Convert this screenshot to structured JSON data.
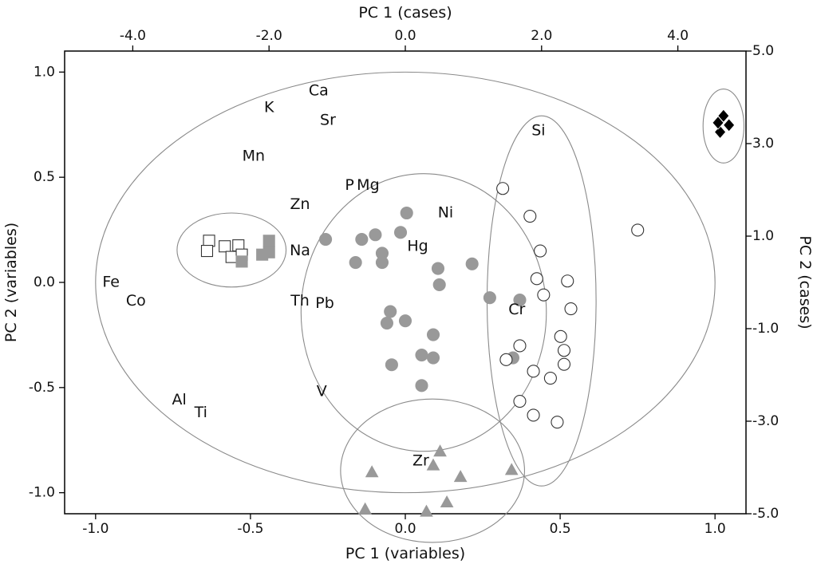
{
  "chart_data": {
    "type": "scatter",
    "axes": {
      "bottom": {
        "label": "PC 1 (variables)",
        "range": [
          -1.1,
          1.1
        ],
        "ticks": [
          -1.0,
          -0.5,
          0.0,
          0.5,
          1.0
        ],
        "tick_labels": [
          "-1.0",
          "-0.5",
          "0.0",
          "0.5",
          "1.0"
        ]
      },
      "left": {
        "label": "PC 2 (variables)",
        "range": [
          -1.1,
          1.1
        ],
        "ticks": [
          -1.0,
          -0.5,
          0.0,
          0.5,
          1.0
        ],
        "tick_labels": [
          "-1.0",
          "-0.5",
          "0.0",
          "0.5",
          "1.0"
        ]
      },
      "top": {
        "label": "PC 1 (cases)",
        "range": [
          -5.0,
          5.0
        ],
        "ticks": [
          -4.0,
          -2.0,
          0.0,
          2.0,
          4.0
        ],
        "tick_labels": [
          "-4.0",
          "-2.0",
          "0.0",
          "2.0",
          "4.0"
        ]
      },
      "right": {
        "label": "PC 2 (cases)",
        "range": [
          -5.0,
          5.0
        ],
        "ticks": [
          -5.0,
          -3.0,
          -1.0,
          1.0,
          3.0,
          5.0
        ],
        "tick_labels": [
          "-5.0",
          "-3.0",
          "-1.0",
          "1.0",
          "3.0",
          "5.0"
        ]
      }
    },
    "grid": false,
    "variables": [
      {
        "label": "Ca",
        "x": -0.28,
        "y": 0.91
      },
      {
        "label": "K",
        "x": -0.44,
        "y": 0.83
      },
      {
        "label": "Sr",
        "x": -0.25,
        "y": 0.77
      },
      {
        "label": "Mn",
        "x": -0.49,
        "y": 0.6
      },
      {
        "label": "Si",
        "x": 0.43,
        "y": 0.72
      },
      {
        "label": "P",
        "x": -0.18,
        "y": 0.46
      },
      {
        "label": "Mg",
        "x": -0.12,
        "y": 0.46
      },
      {
        "label": "Zn",
        "x": -0.34,
        "y": 0.37
      },
      {
        "label": "Ni",
        "x": 0.13,
        "y": 0.33
      },
      {
        "label": "Hg",
        "x": 0.04,
        "y": 0.17
      },
      {
        "label": "Na",
        "x": -0.34,
        "y": 0.15
      },
      {
        "label": "Fe",
        "x": -0.95,
        "y": 0.0
      },
      {
        "label": "Co",
        "x": -0.87,
        "y": -0.09
      },
      {
        "label": "Th",
        "x": -0.34,
        "y": -0.09
      },
      {
        "label": "Pb",
        "x": -0.26,
        "y": -0.1
      },
      {
        "label": "Cr",
        "x": 0.36,
        "y": -0.13
      },
      {
        "label": "V",
        "x": -0.27,
        "y": -0.52
      },
      {
        "label": "Al",
        "x": -0.73,
        "y": -0.56
      },
      {
        "label": "Ti",
        "x": -0.66,
        "y": -0.62
      },
      {
        "label": "Zr",
        "x": 0.05,
        "y": -0.85
      }
    ],
    "series": [
      {
        "marker": "filled-circle",
        "color": "#999999",
        "points": [
          [
            0.02,
            1.5
          ],
          [
            -1.17,
            0.93
          ],
          [
            -0.64,
            0.93
          ],
          [
            -0.44,
            1.03
          ],
          [
            -0.07,
            1.08
          ],
          [
            -0.34,
            0.63
          ],
          [
            -0.73,
            0.43
          ],
          [
            -0.34,
            0.43
          ],
          [
            0.48,
            0.3
          ],
          [
            0.98,
            0.4
          ],
          [
            0.5,
            -0.05
          ],
          [
            -0.22,
            -0.63
          ],
          [
            -0.27,
            -0.88
          ],
          [
            0.0,
            -0.83
          ],
          [
            1.24,
            -0.33
          ],
          [
            1.68,
            -0.38
          ],
          [
            0.41,
            -1.13
          ],
          [
            0.24,
            -1.57
          ],
          [
            0.41,
            -1.63
          ],
          [
            1.58,
            -1.63
          ],
          [
            -0.2,
            -1.78
          ],
          [
            0.24,
            -2.23
          ]
        ]
      },
      {
        "marker": "open-circle",
        "color": "#ffffff",
        "points": [
          [
            1.43,
            2.03
          ],
          [
            1.83,
            1.43
          ],
          [
            3.41,
            1.13
          ],
          [
            1.98,
            0.68
          ],
          [
            1.93,
            0.08
          ],
          [
            2.38,
            0.03
          ],
          [
            2.03,
            -0.27
          ],
          [
            2.43,
            -0.57
          ],
          [
            2.28,
            -1.17
          ],
          [
            2.33,
            -1.47
          ],
          [
            1.68,
            -1.37
          ],
          [
            1.48,
            -1.67
          ],
          [
            2.33,
            -1.77
          ],
          [
            1.88,
            -1.92
          ],
          [
            2.13,
            -2.07
          ],
          [
            1.68,
            -2.57
          ],
          [
            1.88,
            -2.87
          ],
          [
            2.23,
            -3.02
          ]
        ]
      },
      {
        "marker": "open-square",
        "color": "#ffffff",
        "points": [
          [
            -2.88,
            0.9
          ],
          [
            -2.91,
            0.68
          ],
          [
            -2.65,
            0.78
          ],
          [
            -2.45,
            0.8
          ],
          [
            -2.55,
            0.55
          ],
          [
            -2.4,
            0.6
          ]
        ]
      },
      {
        "marker": "filled-square",
        "color": "#999999",
        "points": [
          [
            -2.0,
            0.9
          ],
          [
            -2.0,
            0.65
          ],
          [
            -2.1,
            0.6
          ],
          [
            -2.4,
            0.45
          ]
        ]
      },
      {
        "marker": "filled-triangle",
        "color": "#999999",
        "points": [
          [
            -0.49,
            -4.1
          ],
          [
            0.51,
            -3.65
          ],
          [
            0.41,
            -3.95
          ],
          [
            0.81,
            -4.2
          ],
          [
            1.56,
            -4.05
          ],
          [
            -0.59,
            -4.9
          ],
          [
            0.61,
            -4.75
          ],
          [
            0.31,
            -4.95
          ]
        ]
      },
      {
        "marker": "filled-diamond",
        "color": "#000000",
        "points": [
          [
            4.67,
            3.6
          ],
          [
            4.75,
            3.4
          ],
          [
            4.62,
            3.25
          ],
          [
            4.59,
            3.45
          ]
        ]
      }
    ],
    "cluster_ellipses": [
      {
        "cx": -2.55,
        "cy": 0.7,
        "rx": 0.8,
        "ry": 0.8
      },
      {
        "cx": 0.27,
        "cy": -0.65,
        "rx": 1.8,
        "ry": 3.0
      },
      {
        "cx": 2.0,
        "cy": -0.4,
        "rx": 0.8,
        "ry": 4.0
      },
      {
        "cx": 0.4,
        "cy": -4.07,
        "rx": 1.35,
        "ry": 1.55
      },
      {
        "cx": 4.67,
        "cy": 3.38,
        "rx": 0.3,
        "ry": 0.8
      }
    ],
    "correlation_circle": {
      "cx": 0.0,
      "cy": 0.0,
      "r": 1.0
    }
  }
}
